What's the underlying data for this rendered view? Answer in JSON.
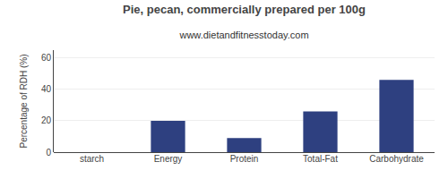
{
  "chart_data": {
    "type": "bar",
    "title": "Pie, pecan, commercially prepared per 100g",
    "subtitle": "www.dietandfitnesstoday.com",
    "categories": [
      "starch",
      "Energy",
      "Protein",
      "Total-Fat",
      "Carbohydrate"
    ],
    "values": [
      0,
      20,
      9,
      26,
      46
    ],
    "color": "#2e4080",
    "ylabel": "Percentage of RDH (%)",
    "ylim": [
      0,
      65
    ],
    "yticks": [
      0,
      20,
      40,
      60
    ],
    "grid": true
  }
}
